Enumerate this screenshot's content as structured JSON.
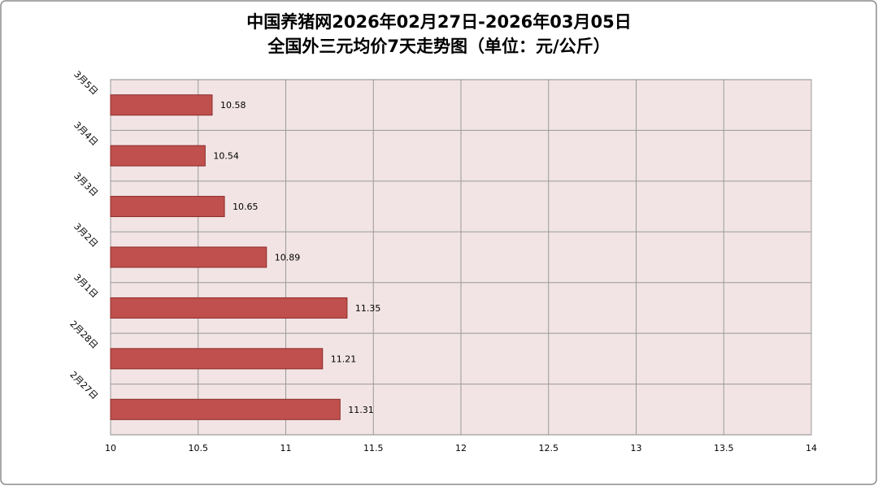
{
  "chart_data": {
    "type": "bar",
    "orientation": "horizontal",
    "title": "中国养猪网2026年02月27日-2026年03月05日",
    "subtitle": "全国外三元均价7天走势图（单位：元/公斤）",
    "categories": [
      "3月5日",
      "3月4日",
      "3月3日",
      "3月2日",
      "3月1日",
      "2月28日",
      "2月27日"
    ],
    "values": [
      10.58,
      10.54,
      10.65,
      10.89,
      11.35,
      11.21,
      11.31
    ],
    "color": "#c0504d",
    "xlim": [
      10,
      14
    ],
    "xticks": [
      10,
      10.5,
      11,
      11.5,
      12,
      12.5,
      13,
      13.5,
      14
    ],
    "grid": true
  }
}
